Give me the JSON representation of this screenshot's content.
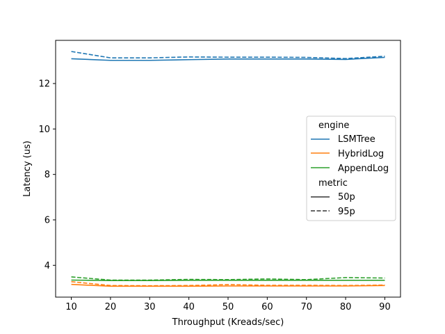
{
  "chart_data": {
    "type": "line",
    "title": "",
    "xlabel": "Throughput (Kreads/sec)",
    "ylabel": "Latency (us)",
    "xlim": [
      6,
      94
    ],
    "ylim": [
      2.6,
      13.9
    ],
    "xticks": [
      10,
      20,
      30,
      40,
      50,
      60,
      70,
      80,
      90
    ],
    "yticks": [
      4,
      6,
      8,
      10,
      12
    ],
    "grid": false,
    "legend_position": "center-right",
    "legend": {
      "hue_title": "engine",
      "style_title": "metric",
      "styles": [
        {
          "name": "50p",
          "dash": "solid"
        },
        {
          "name": "95p",
          "dash": "dashed"
        }
      ]
    },
    "engines": [
      {
        "name": "LSMTree",
        "color": "#1f77b4"
      },
      {
        "name": "HybridLog",
        "color": "#ff7f0e"
      },
      {
        "name": "AppendLog",
        "color": "#2ca02c"
      }
    ],
    "x": [
      10,
      20,
      30,
      40,
      50,
      60,
      70,
      80,
      90
    ],
    "series": [
      {
        "engine": "LSMTree",
        "metric": "50p",
        "values": [
          13.09,
          13.02,
          13.02,
          13.05,
          13.08,
          13.08,
          13.08,
          13.06,
          13.15
        ]
      },
      {
        "engine": "LSMTree",
        "metric": "95p",
        "values": [
          13.41,
          13.13,
          13.13,
          13.17,
          13.16,
          13.16,
          13.15,
          13.1,
          13.2
        ]
      },
      {
        "engine": "HybridLog",
        "metric": "50p",
        "values": [
          3.16,
          3.08,
          3.08,
          3.08,
          3.09,
          3.09,
          3.09,
          3.09,
          3.11
        ]
      },
      {
        "engine": "HybridLog",
        "metric": "95p",
        "values": [
          3.28,
          3.11,
          3.1,
          3.11,
          3.15,
          3.12,
          3.12,
          3.11,
          3.13
        ]
      },
      {
        "engine": "AppendLog",
        "metric": "50p",
        "values": [
          3.35,
          3.33,
          3.33,
          3.34,
          3.34,
          3.34,
          3.34,
          3.34,
          3.34
        ]
      },
      {
        "engine": "AppendLog",
        "metric": "95p",
        "values": [
          3.49,
          3.35,
          3.35,
          3.38,
          3.37,
          3.4,
          3.37,
          3.46,
          3.44
        ]
      }
    ]
  }
}
